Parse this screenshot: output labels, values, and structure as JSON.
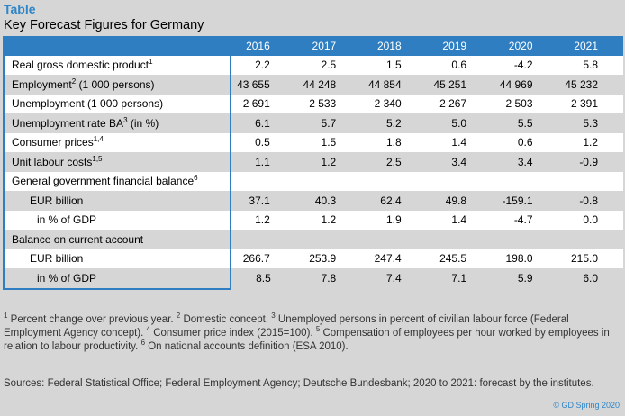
{
  "header": {
    "label": "Table",
    "title": "Key Forecast Figures for Germany"
  },
  "table": {
    "columns": [
      "2016",
      "2017",
      "2018",
      "2019",
      "2020",
      "2021"
    ],
    "rows": [
      {
        "label": "Real gross domestic product",
        "note": "1",
        "values": [
          "2.2",
          "2.5",
          "1.5",
          "0.6",
          "-4.2",
          "5.8"
        ]
      },
      {
        "label": "Employment",
        "note": "2",
        "unit": "(1 000 persons)",
        "values": [
          "43 655",
          "44 248",
          "44 854",
          "45 251",
          "44 969",
          "45 232"
        ]
      },
      {
        "label": "Unemployment (1 000 persons)",
        "values": [
          "2 691",
          "2 533",
          "2 340",
          "2 267",
          "2 503",
          "2 391"
        ]
      },
      {
        "label": "Unemployment rate BA",
        "note": "3",
        "unit": "(in %)",
        "values": [
          "6.1",
          "5.7",
          "5.2",
          "5.0",
          "5.5",
          "5.3"
        ]
      },
      {
        "label": "Consumer prices",
        "note": "1,4",
        "values": [
          "0.5",
          "1.5",
          "1.8",
          "1.4",
          "0.6",
          "1.2"
        ]
      },
      {
        "label": "Unit labour costs",
        "note": "1,5",
        "values": [
          "1.1",
          "1.2",
          "2.5",
          "3.4",
          "3.4",
          "-0.9"
        ]
      },
      {
        "label": "General government financial balance",
        "note": "6"
      },
      {
        "label": "EUR billion",
        "indent": 1,
        "values": [
          "37.1",
          "40.3",
          "62.4",
          "49.8",
          "-159.1",
          "-0.8"
        ]
      },
      {
        "label": "in % of GDP",
        "indent": 2,
        "values": [
          "1.2",
          "1.2",
          "1.9",
          "1.4",
          "-4.7",
          "0.0"
        ]
      },
      {
        "label": "Balance on current account"
      },
      {
        "label": "EUR billion",
        "indent": 1,
        "values": [
          "266.7",
          "253.9",
          "247.4",
          "245.5",
          "198.0",
          "215.0"
        ]
      },
      {
        "label": "in % of GDP",
        "indent": 2,
        "values": [
          "8.5",
          "7.8",
          "7.4",
          "7.1",
          "5.9",
          "6.0"
        ]
      }
    ]
  },
  "footnotes": [
    {
      "mark": "1",
      "text": "Percent change over previous year."
    },
    {
      "mark": "2",
      "text": "Domestic concept."
    },
    {
      "mark": "3",
      "text": "Unemployed persons in percent of civilian labour force (Federal Employment Agency concept)."
    },
    {
      "mark": "4",
      "text": "Consumer price index (2015=100)."
    },
    {
      "mark": "5",
      "text": "Compensation of employees per hour worked by employees in relation to labour productivity."
    },
    {
      "mark": "6",
      "text": "On national accounts definition (ESA 2010)."
    }
  ],
  "sources": "Sources: Federal Statistical Office; Federal Employment Agency; Deutsche Bundesbank; 2020 to 2021: forecast by the institutes.",
  "copyright": "© GD Spring 2020"
}
